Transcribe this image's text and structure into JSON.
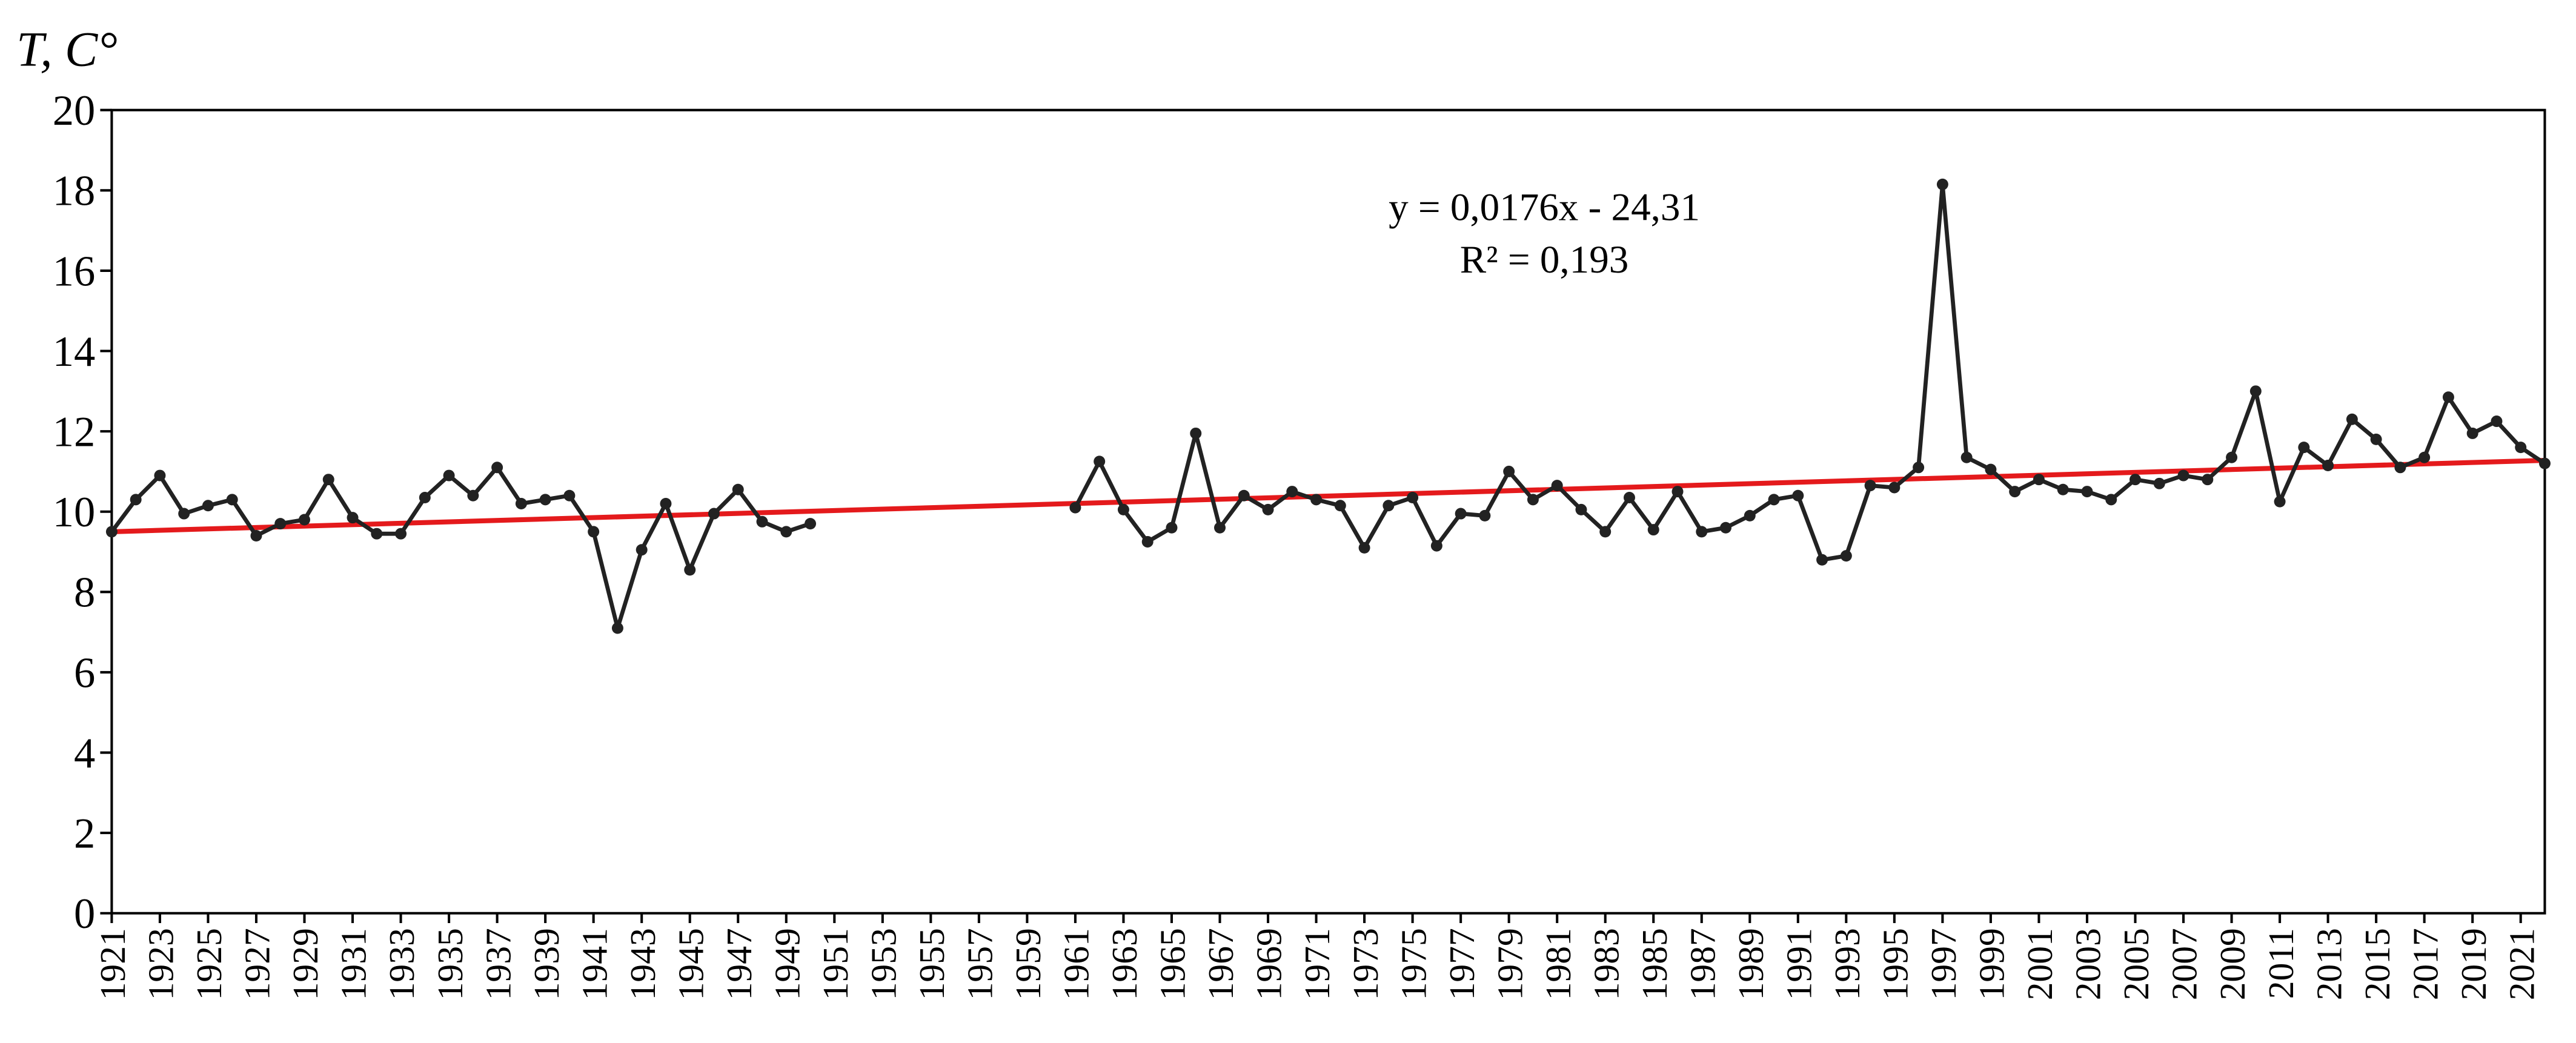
{
  "chart_data": {
    "type": "line",
    "y_label": "T, C°",
    "annotations": [
      "y = 0,0176x - 24,31",
      "R² = 0,193"
    ],
    "trendline": {
      "slope": 0.0176,
      "intercept": -24.31,
      "color": "#e41a1c"
    },
    "color": "#222222",
    "x": [
      1921,
      1922,
      1923,
      1924,
      1925,
      1926,
      1927,
      1928,
      1929,
      1930,
      1931,
      1932,
      1933,
      1934,
      1935,
      1936,
      1937,
      1938,
      1939,
      1940,
      1941,
      1942,
      1943,
      1944,
      1945,
      1946,
      1947,
      1948,
      1949,
      1950,
      1951,
      1952,
      1953,
      1954,
      1955,
      1956,
      1957,
      1958,
      1959,
      1960,
      1961,
      1962,
      1963,
      1964,
      1965,
      1966,
      1967,
      1968,
      1969,
      1970,
      1971,
      1972,
      1973,
      1974,
      1975,
      1976,
      1977,
      1978,
      1979,
      1980,
      1981,
      1982,
      1983,
      1984,
      1985,
      1986,
      1987,
      1988,
      1989,
      1990,
      1991,
      1992,
      1993,
      1994,
      1995,
      1996,
      1997,
      1998,
      1999,
      2000,
      2001,
      2002,
      2003,
      2004,
      2005,
      2006,
      2007,
      2008,
      2009,
      2010,
      2011,
      2012,
      2013,
      2014,
      2015,
      2016,
      2017,
      2018,
      2019,
      2020,
      2021,
      2022
    ],
    "values": [
      9.5,
      10.3,
      10.9,
      9.95,
      10.15,
      10.3,
      9.4,
      9.7,
      9.8,
      10.8,
      9.85,
      9.45,
      9.45,
      10.35,
      10.9,
      10.4,
      11.1,
      10.2,
      10.3,
      10.4,
      9.5,
      7.1,
      9.05,
      10.2,
      8.55,
      9.95,
      10.55,
      9.75,
      9.5,
      9.7,
      null,
      null,
      null,
      null,
      null,
      null,
      null,
      null,
      null,
      null,
      10.1,
      11.25,
      10.05,
      9.25,
      9.6,
      11.95,
      9.6,
      10.4,
      10.05,
      10.5,
      10.3,
      10.15,
      9.1,
      10.15,
      10.35,
      9.15,
      9.95,
      9.9,
      11.0,
      10.3,
      10.65,
      10.05,
      9.5,
      10.35,
      9.55,
      10.5,
      9.5,
      9.6,
      9.9,
      10.3,
      10.4,
      8.8,
      8.9,
      10.65,
      10.6,
      11.1,
      18.15,
      11.35,
      11.05,
      10.5,
      10.8,
      10.55,
      10.5,
      10.3,
      10.8,
      10.7,
      10.9,
      10.8,
      11.35,
      13.0,
      10.25,
      11.6,
      11.15,
      12.3,
      11.8,
      11.1,
      11.35,
      12.85,
      11.95,
      12.25,
      11.6,
      11.2
    ],
    "xlim": [
      1921,
      2022
    ],
    "xticks": [
      1921,
      1923,
      1925,
      1927,
      1929,
      1931,
      1933,
      1935,
      1937,
      1939,
      1941,
      1943,
      1945,
      1947,
      1949,
      1951,
      1953,
      1955,
      1957,
      1959,
      1961,
      1963,
      1965,
      1967,
      1969,
      1971,
      1973,
      1975,
      1977,
      1979,
      1981,
      1983,
      1985,
      1987,
      1989,
      1991,
      1993,
      1995,
      1997,
      1999,
      2001,
      2003,
      2005,
      2007,
      2009,
      2011,
      2013,
      2015,
      2017,
      2019,
      2021
    ],
    "ylim": [
      0,
      20
    ],
    "yticks": [
      0,
      2,
      4,
      6,
      8,
      10,
      12,
      14,
      16,
      18,
      20
    ],
    "grid": false
  }
}
